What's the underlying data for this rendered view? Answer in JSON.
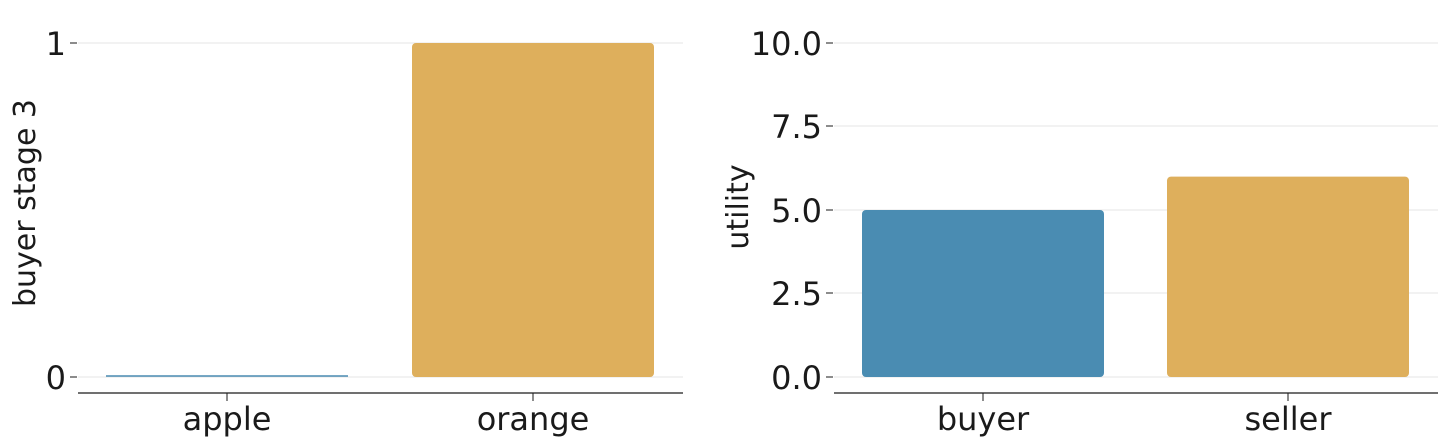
{
  "chart_data": [
    {
      "type": "bar",
      "title": "",
      "xlabel": "",
      "ylabel": "buyer stage 3",
      "categories": [
        "apple",
        "orange"
      ],
      "values": [
        0,
        1
      ],
      "colors": [
        "#4a8cb2",
        "#deaf5c"
      ],
      "ylim": [
        -0.05,
        1.05
      ],
      "yticks": [
        0,
        1
      ],
      "ytick_labels": [
        "0",
        "1"
      ],
      "grid": "horizontal"
    },
    {
      "type": "bar",
      "title": "",
      "xlabel": "",
      "ylabel": "utility",
      "categories": [
        "buyer",
        "seller"
      ],
      "values": [
        5.0,
        6.0
      ],
      "colors": [
        "#4a8cb2",
        "#deaf5c"
      ],
      "ylim": [
        -0.5,
        10.5
      ],
      "yticks": [
        0,
        2.5,
        5,
        7.5,
        10
      ],
      "ytick_labels": [
        "0.0",
        "2.5",
        "5.0",
        "7.5",
        "10.0"
      ],
      "grid": "horizontal"
    }
  ]
}
